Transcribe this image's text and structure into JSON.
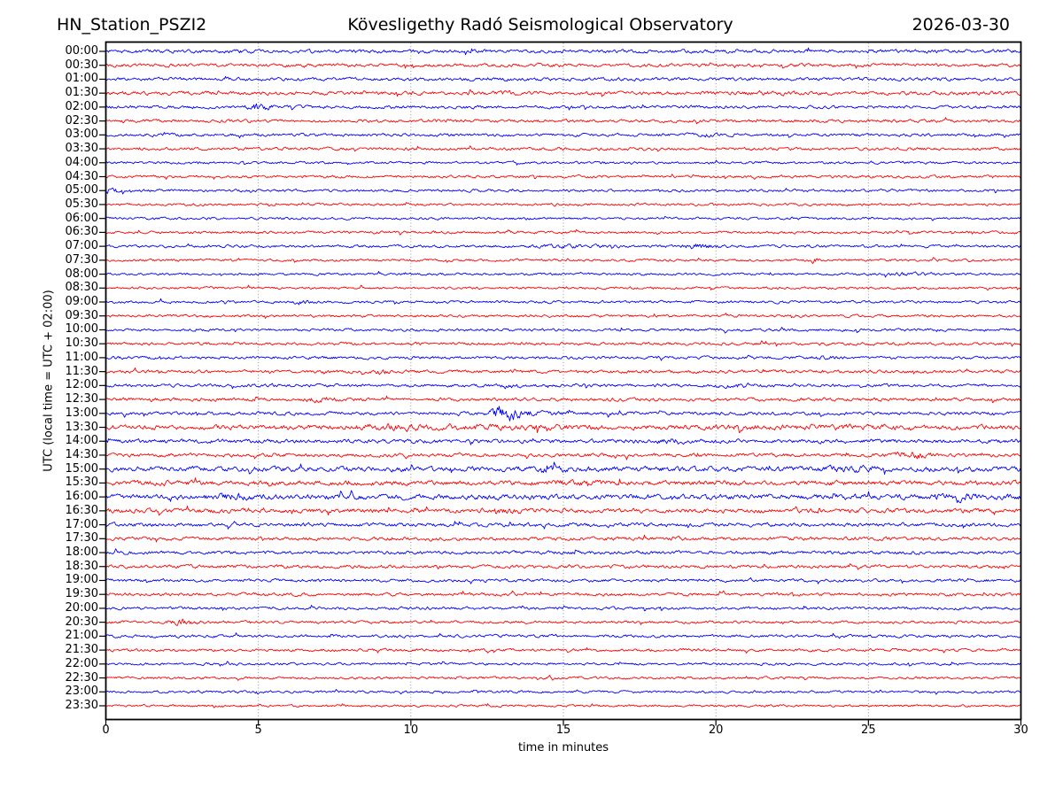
{
  "header": {
    "station": "HN_Station_PSZI2",
    "observatory": "Kövesligethy Radó Seismological Observatory",
    "date": "2026-03-30"
  },
  "chart_data": {
    "type": "line",
    "variant": "seismogram-helicorder-dayplot",
    "xlabel": "time in minutes",
    "ylabel": "UTC (local time = UTC + 02:00)",
    "xlim": [
      0,
      30
    ],
    "xticks": [
      0,
      5,
      10,
      15,
      20,
      25,
      30
    ],
    "grid": {
      "vertical_dotted_minutes": [
        5,
        10,
        15,
        20,
        25
      ],
      "color": "#8a8a8a"
    },
    "minutes_per_line": 30,
    "colors": {
      "blue": "#0000ff",
      "red": "#ff0000",
      "frame": "#000000"
    },
    "traces": [
      {
        "label": "00:00",
        "color": "blue",
        "noise_level": 1.7,
        "events": []
      },
      {
        "label": "00:30",
        "color": "red",
        "noise_level": 1.6,
        "events": []
      },
      {
        "label": "01:00",
        "color": "blue",
        "noise_level": 1.6,
        "events": []
      },
      {
        "label": "01:30",
        "color": "red",
        "noise_level": 1.7,
        "events": [
          {
            "minute": 13.3,
            "width": 0.3,
            "amp": 1.5
          },
          {
            "minute": 22.0,
            "width": 0.6,
            "amp": 1.4
          }
        ]
      },
      {
        "label": "02:00",
        "color": "blue",
        "noise_level": 1.5,
        "events": [
          {
            "minute": 5.0,
            "width": 0.25,
            "amp": 3.2
          }
        ]
      },
      {
        "label": "02:30",
        "color": "red",
        "noise_level": 1.5,
        "events": [
          {
            "minute": 11.0,
            "width": 0.3,
            "amp": 1.5
          }
        ]
      },
      {
        "label": "03:00",
        "color": "blue",
        "noise_level": 1.5,
        "events": [
          {
            "minute": 19.8,
            "width": 0.4,
            "amp": 1.5
          }
        ]
      },
      {
        "label": "03:30",
        "color": "red",
        "noise_level": 1.4,
        "events": []
      },
      {
        "label": "04:00",
        "color": "blue",
        "noise_level": 1.2,
        "events": []
      },
      {
        "label": "04:30",
        "color": "red",
        "noise_level": 1.3,
        "events": []
      },
      {
        "label": "05:00",
        "color": "blue",
        "noise_level": 1.3,
        "events": [
          {
            "minute": 0.15,
            "width": 0.25,
            "amp": 2.6
          }
        ]
      },
      {
        "label": "05:30",
        "color": "red",
        "noise_level": 1.2,
        "events": []
      },
      {
        "label": "06:00",
        "color": "blue",
        "noise_level": 1.2,
        "events": []
      },
      {
        "label": "06:30",
        "color": "red",
        "noise_level": 1.3,
        "events": []
      },
      {
        "label": "07:00",
        "color": "blue",
        "noise_level": 1.3,
        "events": [
          {
            "minute": 15.3,
            "width": 0.7,
            "amp": 1.8
          },
          {
            "minute": 19.4,
            "width": 0.45,
            "amp": 2.3
          }
        ]
      },
      {
        "label": "07:30",
        "color": "red",
        "noise_level": 1.2,
        "events": [
          {
            "minute": 23.2,
            "width": 0.12,
            "amp": 2.6
          }
        ]
      },
      {
        "label": "08:00",
        "color": "blue",
        "noise_level": 1.2,
        "events": [
          {
            "minute": 26.4,
            "width": 0.5,
            "amp": 1.7
          }
        ]
      },
      {
        "label": "08:30",
        "color": "red",
        "noise_level": 1.2,
        "events": []
      },
      {
        "label": "09:00",
        "color": "blue",
        "noise_level": 1.3,
        "events": [
          {
            "minute": 6.4,
            "width": 0.2,
            "amp": 2.1
          }
        ]
      },
      {
        "label": "09:30",
        "color": "red",
        "noise_level": 1.3,
        "events": []
      },
      {
        "label": "10:00",
        "color": "blue",
        "noise_level": 1.3,
        "events": []
      },
      {
        "label": "10:30",
        "color": "red",
        "noise_level": 1.4,
        "events": []
      },
      {
        "label": "11:00",
        "color": "blue",
        "noise_level": 1.4,
        "events": [
          {
            "minute": 23.6,
            "width": 0.3,
            "amp": 1.9
          }
        ]
      },
      {
        "label": "11:30",
        "color": "red",
        "noise_level": 1.5,
        "events": [
          {
            "minute": 9.0,
            "width": 0.15,
            "amp": 2.3
          }
        ]
      },
      {
        "label": "12:00",
        "color": "blue",
        "noise_level": 1.5,
        "events": [
          {
            "minute": 13.2,
            "width": 0.2,
            "amp": 1.9
          },
          {
            "minute": 20.8,
            "width": 0.4,
            "amp": 1.7
          }
        ]
      },
      {
        "label": "12:30",
        "color": "red",
        "noise_level": 1.6,
        "events": [
          {
            "minute": 7.0,
            "width": 0.3,
            "amp": 2.1
          }
        ]
      },
      {
        "label": "13:00",
        "color": "blue",
        "noise_level": 1.6,
        "events": [
          {
            "minute": 13.1,
            "width": 0.35,
            "amp": 4.5
          },
          {
            "minute": 13.9,
            "width": 0.8,
            "amp": 1.8
          }
        ]
      },
      {
        "label": "13:30",
        "color": "red",
        "noise_level": 2.2,
        "events": [
          {
            "minute": 9.3,
            "width": 0.8,
            "amp": 1.7
          },
          {
            "minute": 13.5,
            "width": 1.5,
            "amp": 1.4
          },
          {
            "minute": 23.0,
            "width": 2.5,
            "amp": 1.3
          }
        ]
      },
      {
        "label": "14:00",
        "color": "blue",
        "noise_level": 1.9,
        "events": [
          {
            "minute": 18.6,
            "width": 0.25,
            "amp": 2.0
          }
        ]
      },
      {
        "label": "14:30",
        "color": "red",
        "noise_level": 1.7,
        "events": [
          {
            "minute": 26.5,
            "width": 0.35,
            "amp": 2.7
          }
        ]
      },
      {
        "label": "15:00",
        "color": "blue",
        "noise_level": 2.4,
        "events": [
          {
            "minute": 14.8,
            "width": 1.0,
            "amp": 1.3
          },
          {
            "minute": 24.5,
            "width": 0.6,
            "amp": 1.5
          }
        ]
      },
      {
        "label": "15:30",
        "color": "red",
        "noise_level": 2.3,
        "events": [
          {
            "minute": 15.2,
            "width": 0.8,
            "amp": 1.4
          }
        ]
      },
      {
        "label": "16:00",
        "color": "blue",
        "noise_level": 2.5,
        "events": [
          {
            "minute": 4.2,
            "width": 0.5,
            "amp": 1.5
          },
          {
            "minute": 27.8,
            "width": 0.6,
            "amp": 1.6
          }
        ]
      },
      {
        "label": "16:30",
        "color": "red",
        "noise_level": 2.1,
        "events": [
          {
            "minute": 13.3,
            "width": 0.5,
            "amp": 1.5
          }
        ]
      },
      {
        "label": "17:00",
        "color": "blue",
        "noise_level": 1.8,
        "events": []
      },
      {
        "label": "17:30",
        "color": "red",
        "noise_level": 1.7,
        "events": []
      },
      {
        "label": "18:00",
        "color": "blue",
        "noise_level": 1.6,
        "events": []
      },
      {
        "label": "18:30",
        "color": "red",
        "noise_level": 1.6,
        "events": []
      },
      {
        "label": "19:00",
        "color": "blue",
        "noise_level": 1.5,
        "events": []
      },
      {
        "label": "19:30",
        "color": "red",
        "noise_level": 1.5,
        "events": []
      },
      {
        "label": "20:00",
        "color": "blue",
        "noise_level": 1.4,
        "events": []
      },
      {
        "label": "20:30",
        "color": "red",
        "noise_level": 1.3,
        "events": [
          {
            "minute": 2.5,
            "width": 0.3,
            "amp": 3.2
          }
        ]
      },
      {
        "label": "21:00",
        "color": "blue",
        "noise_level": 1.4,
        "events": []
      },
      {
        "label": "21:30",
        "color": "red",
        "noise_level": 1.3,
        "events": []
      },
      {
        "label": "22:00",
        "color": "blue",
        "noise_level": 1.2,
        "events": []
      },
      {
        "label": "22:30",
        "color": "red",
        "noise_level": 1.2,
        "events": []
      },
      {
        "label": "23:00",
        "color": "blue",
        "noise_level": 1.2,
        "events": []
      },
      {
        "label": "23:30",
        "color": "red",
        "noise_level": 1.1,
        "events": []
      }
    ]
  }
}
